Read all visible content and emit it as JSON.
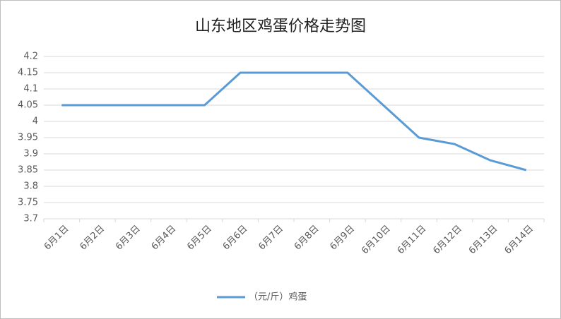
{
  "chart_data": {
    "type": "line",
    "title": "山东地区鸡蛋价格走势图",
    "categories": [
      "6月1日",
      "6月2日",
      "6月3日",
      "6月4日",
      "6月5日",
      "6月6日",
      "6月7日",
      "6月8日",
      "6月9日",
      "6月10日",
      "6月11日",
      "6月12日",
      "6月13日",
      "6月14日"
    ],
    "series": [
      {
        "name": "（元/斤）鸡蛋",
        "color": "#5b9bd5",
        "values": [
          4.05,
          4.05,
          4.05,
          4.05,
          4.05,
          4.15,
          4.15,
          4.15,
          4.15,
          4.05,
          3.95,
          3.93,
          3.88,
          3.85
        ]
      }
    ],
    "ylim": [
      3.7,
      4.2
    ],
    "yticks": [
      3.7,
      3.75,
      3.8,
      3.85,
      3.9,
      3.95,
      4,
      4.05,
      4.1,
      4.15,
      4.2
    ],
    "grid": true,
    "legend": "bottom"
  }
}
